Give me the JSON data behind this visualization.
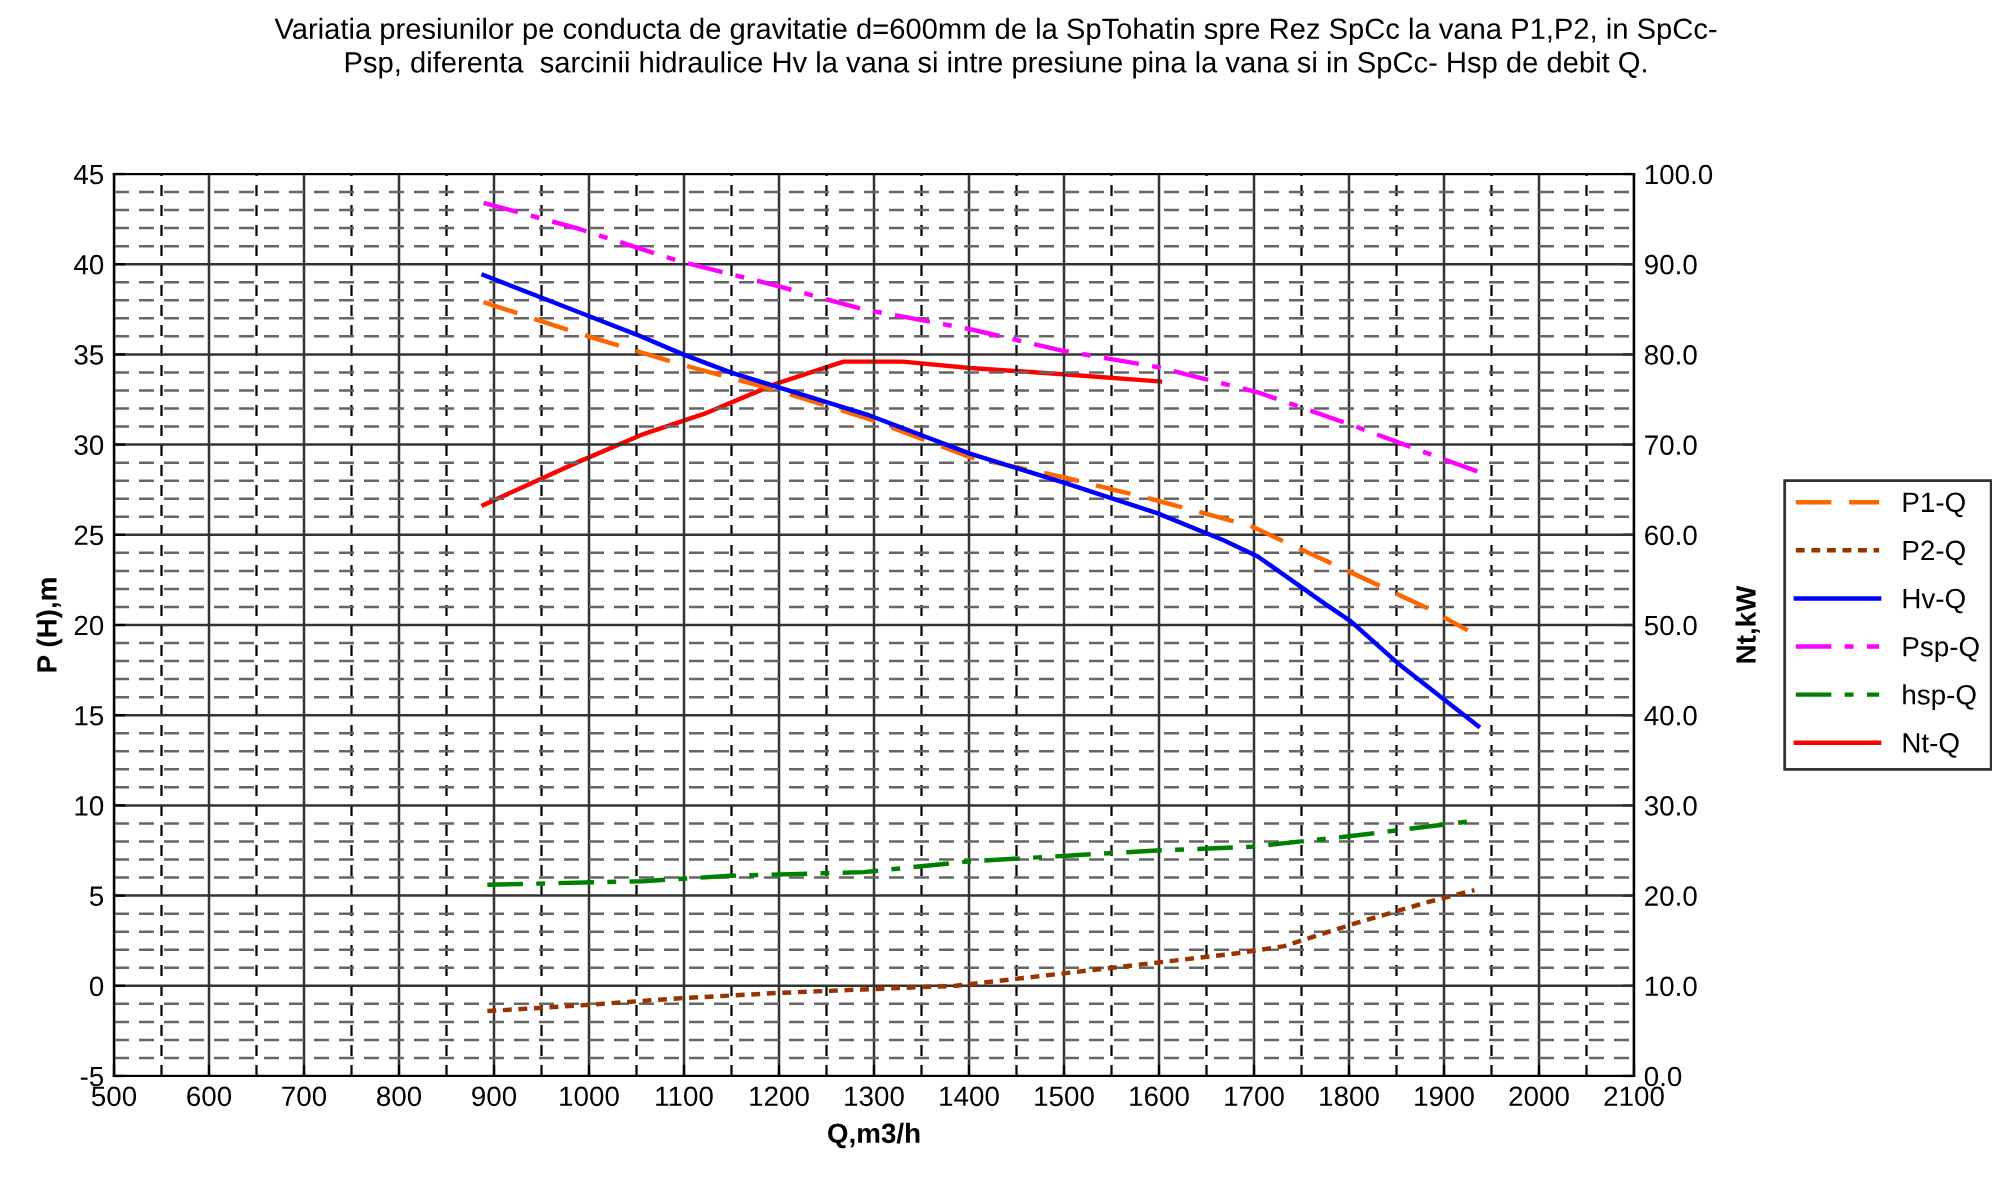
{
  "chart_data": {
    "type": "line",
    "title": "Variatia presiunilor pe conducta de gravitatie d=600mm de la SpTohatin spre Rez SpCc la vana P1,P2, in SpCc-\nPsp, diferenta  sarcinii hidraulice Hv la vana si intre presiune pina la vana si in SpCc- Hsp de debit Q.",
    "xlabel": "Q,m3/h",
    "ylabel": "P (H),m",
    "y2label": "Nt,kW",
    "xlim": [
      500,
      2100
    ],
    "xticks": [
      500,
      600,
      700,
      800,
      900,
      1000,
      1100,
      1200,
      1300,
      1400,
      1500,
      1600,
      1700,
      1800,
      1900,
      2000,
      2100
    ],
    "ylim": [
      -5,
      45
    ],
    "yticks": [
      -5,
      0,
      5,
      10,
      15,
      20,
      25,
      30,
      35,
      40,
      45
    ],
    "y2lim": [
      0,
      100
    ],
    "y2ticks": [
      {
        "value": 0,
        "label": "0.0"
      },
      {
        "value": 10,
        "label": "10.0"
      },
      {
        "value": 20,
        "label": "20.0"
      },
      {
        "value": 30,
        "label": "30.0"
      },
      {
        "value": 40,
        "label": "40.0"
      },
      {
        "value": 50,
        "label": "50.0"
      },
      {
        "value": 60,
        "label": "60.0"
      },
      {
        "value": 70,
        "label": "70.0"
      },
      {
        "value": 80,
        "label": "80.0"
      },
      {
        "value": 90,
        "label": "90.0"
      },
      {
        "value": 100,
        "label": "100.0"
      }
    ],
    "grid": true,
    "legend": "right",
    "marker": "none",
    "series": [
      {
        "name": "P1-Q",
        "color": "#ff6600",
        "line_style": "dashed",
        "x": [
          889,
          987,
          1093,
          1198,
          1296,
          1401,
          1499,
          1598,
          1696,
          1774,
          1880,
          1925
        ],
        "values": [
          37.9,
          36.2,
          34.5,
          33.0,
          31.4,
          29.3,
          28.2,
          26.9,
          25.5,
          23.6,
          21.0,
          19.7
        ]
      },
      {
        "name": "P2-Q",
        "color": "#993300",
        "line_style": "dotted",
        "x": [
          893,
          987,
          1093,
          1198,
          1289,
          1386,
          1485,
          1584,
          1682,
          1732,
          1809,
          1880,
          1932
        ],
        "values": [
          -1.4,
          -1.1,
          -0.7,
          -0.4,
          -0.2,
          0.0,
          0.6,
          1.2,
          1.8,
          2.2,
          3.5,
          4.6,
          5.3
        ]
      },
      {
        "name": "Hv-Q",
        "color": "#0000ff",
        "line_style": "solid",
        "x": [
          889,
          1001,
          1050,
          1099,
          1149,
          1198,
          1296,
          1401,
          1499,
          1598,
          1668,
          1704,
          1774,
          1802,
          1851,
          1936
        ],
        "values": [
          39.4,
          37.1,
          36.1,
          35.0,
          34.0,
          33.2,
          31.6,
          29.5,
          27.9,
          26.2,
          24.7,
          23.8,
          21.2,
          20.2,
          17.9,
          14.4
        ]
      },
      {
        "name": "Psp-Q",
        "color": "#ff00ff",
        "line_style": "dashdot",
        "x": [
          889,
          987,
          1093,
          1198,
          1289,
          1401,
          1499,
          1598,
          1704,
          1802,
          1894,
          1936
        ],
        "values": [
          43.4,
          42.0,
          40.2,
          38.8,
          37.5,
          36.4,
          35.2,
          34.3,
          32.9,
          31.1,
          29.3,
          28.5
        ]
      },
      {
        "name": "hsp-Q",
        "color": "#008000",
        "line_style": "dashdot",
        "x": [
          893,
          1057,
          1149,
          1289,
          1401,
          1499,
          1598,
          1696,
          1802,
          1925
        ],
        "values": [
          5.6,
          5.8,
          6.1,
          6.3,
          6.9,
          7.2,
          7.5,
          7.7,
          8.3,
          9.1
        ]
      },
      {
        "name": "Nt-Q",
        "color": "#ff0000",
        "line_style": "solid",
        "axis": "y2",
        "x": [
          889,
          987,
          1058,
          1121,
          1198,
          1268,
          1296,
          1330,
          1401,
          1499,
          1601
        ],
        "values": [
          63.3,
          68.0,
          71.2,
          73.4,
          76.8,
          79.2,
          79.2,
          79.2,
          78.5,
          77.8,
          77.0
        ]
      }
    ]
  }
}
